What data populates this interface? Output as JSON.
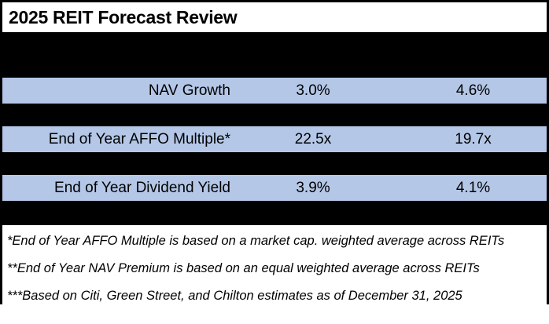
{
  "title": "2025 REIT Forecast Review",
  "colors": {
    "row_background": "#b4c7e7",
    "band": "#000000",
    "border": "#000000",
    "page_background": "#ffffff",
    "text": "#000000"
  },
  "table": {
    "rows": [
      {
        "label": "NAV Growth",
        "value1": "3.0%",
        "value2": "4.6%"
      },
      {
        "label": "End of Year AFFO Multiple*",
        "value1": "22.5x",
        "value2": "19.7x"
      },
      {
        "label": "End of Year Dividend Yield",
        "value1": "3.9%",
        "value2": "4.1%"
      }
    ]
  },
  "footnotes": [
    "*End of Year AFFO Multiple is based on a market cap. weighted average across REITs",
    "**End of Year NAV Premium is based on an equal weighted average across REITs",
    "***Based on Citi, Green Street, and Chilton estimates as of December 31, 2025"
  ]
}
